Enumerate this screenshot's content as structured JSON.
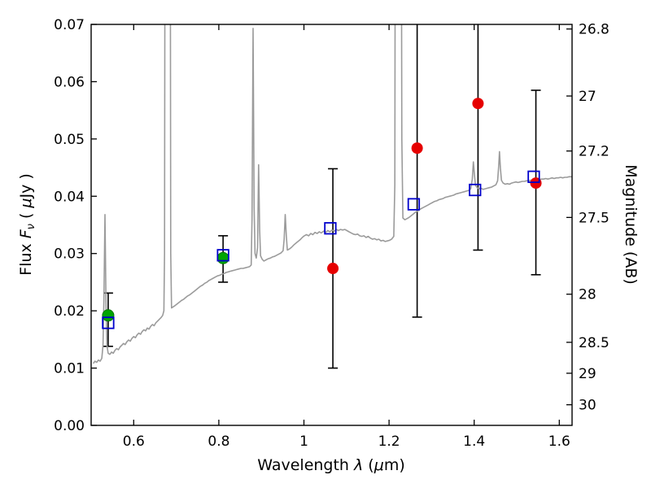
{
  "chart_data": {
    "type": "line",
    "title": "",
    "grid": false,
    "legend": null,
    "xlabel": "Wavelength λ (μm)",
    "xlabel_parts": {
      "pre": "Wavelength ",
      "lambda": "λ",
      "mid": " (",
      "mu": "μ",
      "post": "m)"
    },
    "ylabel_left": "Flux Fν ( μJy )",
    "ylabel_parts": {
      "p1": "Flux ",
      "F": "F",
      "nu": "ν",
      "p2": " ( ",
      "mu": "μ",
      "p3": "Jy )"
    },
    "ylabel_right": "Magnitude (AB)",
    "x_axis": {
      "min": 0.5,
      "max": 1.63,
      "ticks": [
        {
          "v": 0.6,
          "t": "0.6"
        },
        {
          "v": 0.8,
          "t": "0.8"
        },
        {
          "v": 1.0,
          "t": "1"
        },
        {
          "v": 1.2,
          "t": "1.2"
        },
        {
          "v": 1.4,
          "t": "1.4"
        },
        {
          "v": 1.6,
          "t": "1.6"
        }
      ]
    },
    "y_axis_left": {
      "min": 0.0,
      "max": 0.07,
      "ticks": [
        {
          "v": 0.0,
          "t": "0.00"
        },
        {
          "v": 0.01,
          "t": "0.01"
        },
        {
          "v": 0.02,
          "t": "0.02"
        },
        {
          "v": 0.03,
          "t": "0.03"
        },
        {
          "v": 0.04,
          "t": "0.04"
        },
        {
          "v": 0.05,
          "t": "0.05"
        },
        {
          "v": 0.06,
          "t": "0.06"
        },
        {
          "v": 0.07,
          "t": "0.07"
        }
      ]
    },
    "y_axis_right": {
      "ticks": [
        {
          "f": 0.0692,
          "t": "26.8"
        },
        {
          "f": 0.0575,
          "t": "27"
        },
        {
          "f": 0.0479,
          "t": "27.2"
        },
        {
          "f": 0.0363,
          "t": "27.5"
        },
        {
          "f": 0.0229,
          "t": "28"
        },
        {
          "f": 0.0145,
          "t": "28.5"
        },
        {
          "f": 0.0091,
          "t": "29"
        },
        {
          "f": 0.0036,
          "t": "30"
        }
      ]
    },
    "colors": {
      "spectrum": "#9b9b9b",
      "green": "#00a500",
      "green_edge": "#007700",
      "red": "#e60000",
      "blue": "#0000cc",
      "errorbar": "#000000",
      "frame": "#000000"
    },
    "series": {
      "green_circles": [
        [
          0.54,
          0.0192
        ],
        [
          0.81,
          0.0292
        ]
      ],
      "blue_squares": [
        [
          0.54,
          0.0179
        ],
        [
          0.81,
          0.0297
        ],
        [
          1.062,
          0.0344
        ],
        [
          1.258,
          0.0386
        ],
        [
          1.402,
          0.0411
        ],
        [
          1.54,
          0.0434
        ]
      ],
      "red_circles": [
        [
          1.068,
          0.0274
        ],
        [
          1.266,
          0.0484
        ],
        [
          1.409,
          0.0562
        ],
        [
          1.545,
          0.0423
        ]
      ],
      "error_bars": [
        {
          "x": 0.54,
          "lo": 0.0138,
          "hi": 0.0231
        },
        {
          "x": 0.81,
          "lo": 0.025,
          "hi": 0.0331
        },
        {
          "x": 1.068,
          "lo": 0.01,
          "hi": 0.0448
        },
        {
          "x": 1.266,
          "lo": 0.0189,
          "hi": 0.078
        },
        {
          "x": 1.409,
          "lo": 0.0306,
          "hi": 0.078
        },
        {
          "x": 1.545,
          "lo": 0.0263,
          "hi": 0.0585
        }
      ],
      "spectrum": [
        [
          0.505,
          0.0108
        ],
        [
          0.509,
          0.0112
        ],
        [
          0.513,
          0.011
        ],
        [
          0.517,
          0.0114
        ],
        [
          0.521,
          0.0112
        ],
        [
          0.525,
          0.0117
        ],
        [
          0.528,
          0.014
        ],
        [
          0.53,
          0.022
        ],
        [
          0.5325,
          0.0368
        ],
        [
          0.535,
          0.021
        ],
        [
          0.537,
          0.014
        ],
        [
          0.54,
          0.0126
        ],
        [
          0.544,
          0.0124
        ],
        [
          0.548,
          0.0128
        ],
        [
          0.552,
          0.0126
        ],
        [
          0.556,
          0.0131
        ],
        [
          0.56,
          0.0134
        ],
        [
          0.564,
          0.0132
        ],
        [
          0.568,
          0.0137
        ],
        [
          0.572,
          0.014
        ],
        [
          0.576,
          0.0143
        ],
        [
          0.58,
          0.0141
        ],
        [
          0.584,
          0.0146
        ],
        [
          0.588,
          0.0149
        ],
        [
          0.592,
          0.0147
        ],
        [
          0.596,
          0.0152
        ],
        [
          0.6,
          0.0155
        ],
        [
          0.604,
          0.0153
        ],
        [
          0.608,
          0.0158
        ],
        [
          0.612,
          0.0161
        ],
        [
          0.616,
          0.0159
        ],
        [
          0.62,
          0.0164
        ],
        [
          0.624,
          0.0167
        ],
        [
          0.628,
          0.0165
        ],
        [
          0.632,
          0.017
        ],
        [
          0.636,
          0.0168
        ],
        [
          0.64,
          0.0173
        ],
        [
          0.644,
          0.0176
        ],
        [
          0.648,
          0.0174
        ],
        [
          0.652,
          0.0179
        ],
        [
          0.656,
          0.0182
        ],
        [
          0.66,
          0.0185
        ],
        [
          0.664,
          0.0188
        ],
        [
          0.668,
          0.0192
        ],
        [
          0.671,
          0.02
        ],
        [
          0.6725,
          0.03
        ],
        [
          0.674,
          0.12
        ],
        [
          0.6855,
          0.12
        ],
        [
          0.687,
          0.03
        ],
        [
          0.689,
          0.0205
        ],
        [
          0.693,
          0.0207
        ],
        [
          0.697,
          0.0209
        ],
        [
          0.702,
          0.0212
        ],
        [
          0.707,
          0.0215
        ],
        [
          0.712,
          0.0218
        ],
        [
          0.717,
          0.022
        ],
        [
          0.722,
          0.0223
        ],
        [
          0.727,
          0.0226
        ],
        [
          0.732,
          0.0228
        ],
        [
          0.737,
          0.0231
        ],
        [
          0.742,
          0.0234
        ],
        [
          0.747,
          0.0237
        ],
        [
          0.752,
          0.024
        ],
        [
          0.757,
          0.0243
        ],
        [
          0.762,
          0.0245
        ],
        [
          0.767,
          0.0248
        ],
        [
          0.772,
          0.025
        ],
        [
          0.777,
          0.0253
        ],
        [
          0.782,
          0.0255
        ],
        [
          0.787,
          0.0257
        ],
        [
          0.792,
          0.0259
        ],
        [
          0.797,
          0.0261
        ],
        [
          0.802,
          0.0262
        ],
        [
          0.807,
          0.0264
        ],
        [
          0.812,
          0.0265
        ],
        [
          0.817,
          0.0267
        ],
        [
          0.822,
          0.0268
        ],
        [
          0.827,
          0.0269
        ],
        [
          0.832,
          0.027
        ],
        [
          0.837,
          0.0271
        ],
        [
          0.842,
          0.0272
        ],
        [
          0.847,
          0.0273
        ],
        [
          0.852,
          0.0274
        ],
        [
          0.857,
          0.0274
        ],
        [
          0.862,
          0.0275
        ],
        [
          0.867,
          0.0276
        ],
        [
          0.872,
          0.0277
        ],
        [
          0.876,
          0.028
        ],
        [
          0.878,
          0.036
        ],
        [
          0.8805,
          0.0693
        ],
        [
          0.883,
          0.038
        ],
        [
          0.885,
          0.03
        ],
        [
          0.888,
          0.0292
        ],
        [
          0.891,
          0.031
        ],
        [
          0.8935,
          0.0455
        ],
        [
          0.896,
          0.034
        ],
        [
          0.898,
          0.0296
        ],
        [
          0.902,
          0.029
        ],
        [
          0.906,
          0.0287
        ],
        [
          0.911,
          0.0289
        ],
        [
          0.916,
          0.0291
        ],
        [
          0.921,
          0.0292
        ],
        [
          0.926,
          0.0294
        ],
        [
          0.931,
          0.0295
        ],
        [
          0.936,
          0.0297
        ],
        [
          0.941,
          0.0299
        ],
        [
          0.946,
          0.0301
        ],
        [
          0.951,
          0.0305
        ],
        [
          0.9535,
          0.0325
        ],
        [
          0.956,
          0.0368
        ],
        [
          0.9585,
          0.0332
        ],
        [
          0.961,
          0.0306
        ],
        [
          0.966,
          0.0308
        ],
        [
          0.971,
          0.0311
        ],
        [
          0.976,
          0.0315
        ],
        [
          0.981,
          0.0318
        ],
        [
          0.986,
          0.0321
        ],
        [
          0.991,
          0.0324
        ],
        [
          0.996,
          0.0328
        ],
        [
          1.001,
          0.0331
        ],
        [
          1.006,
          0.0333
        ],
        [
          1.011,
          0.0331
        ],
        [
          1.016,
          0.0335
        ],
        [
          1.021,
          0.0333
        ],
        [
          1.026,
          0.0337
        ],
        [
          1.031,
          0.0335
        ],
        [
          1.036,
          0.0338
        ],
        [
          1.041,
          0.0336
        ],
        [
          1.046,
          0.0339
        ],
        [
          1.051,
          0.0337
        ],
        [
          1.056,
          0.034
        ],
        [
          1.061,
          0.0338
        ],
        [
          1.066,
          0.0341
        ],
        [
          1.071,
          0.0339
        ],
        [
          1.076,
          0.0342
        ],
        [
          1.081,
          0.034
        ],
        [
          1.086,
          0.0342
        ],
        [
          1.091,
          0.0341
        ],
        [
          1.096,
          0.0342
        ],
        [
          1.101,
          0.034
        ],
        [
          1.106,
          0.0338
        ],
        [
          1.111,
          0.0336
        ],
        [
          1.116,
          0.0334
        ],
        [
          1.121,
          0.0333
        ],
        [
          1.126,
          0.0334
        ],
        [
          1.131,
          0.0331
        ],
        [
          1.136,
          0.033
        ],
        [
          1.141,
          0.0331
        ],
        [
          1.146,
          0.0328
        ],
        [
          1.151,
          0.033
        ],
        [
          1.156,
          0.0327
        ],
        [
          1.161,
          0.0325
        ],
        [
          1.166,
          0.0326
        ],
        [
          1.171,
          0.0324
        ],
        [
          1.176,
          0.0325
        ],
        [
          1.181,
          0.0322
        ],
        [
          1.186,
          0.0323
        ],
        [
          1.191,
          0.0321
        ],
        [
          1.196,
          0.0322
        ],
        [
          1.201,
          0.0323
        ],
        [
          1.206,
          0.0325
        ],
        [
          1.211,
          0.033
        ],
        [
          1.2135,
          0.042
        ],
        [
          1.215,
          0.12
        ],
        [
          1.228,
          0.12
        ],
        [
          1.23,
          0.05
        ],
        [
          1.2325,
          0.0362
        ],
        [
          1.237,
          0.0359
        ],
        [
          1.242,
          0.0361
        ],
        [
          1.247,
          0.0363
        ],
        [
          1.252,
          0.0366
        ],
        [
          1.257,
          0.0369
        ],
        [
          1.262,
          0.0372
        ],
        [
          1.267,
          0.0374
        ],
        [
          1.272,
          0.0377
        ],
        [
          1.277,
          0.0379
        ],
        [
          1.282,
          0.0381
        ],
        [
          1.287,
          0.0383
        ],
        [
          1.292,
          0.0385
        ],
        [
          1.297,
          0.0387
        ],
        [
          1.302,
          0.0389
        ],
        [
          1.307,
          0.0391
        ],
        [
          1.312,
          0.0392
        ],
        [
          1.317,
          0.0394
        ],
        [
          1.322,
          0.0395
        ],
        [
          1.327,
          0.0396
        ],
        [
          1.332,
          0.0398
        ],
        [
          1.337,
          0.0399
        ],
        [
          1.342,
          0.04
        ],
        [
          1.347,
          0.0401
        ],
        [
          1.352,
          0.0402
        ],
        [
          1.357,
          0.0404
        ],
        [
          1.362,
          0.0405
        ],
        [
          1.367,
          0.0406
        ],
        [
          1.372,
          0.0407
        ],
        [
          1.377,
          0.0408
        ],
        [
          1.382,
          0.0409
        ],
        [
          1.387,
          0.041
        ],
        [
          1.392,
          0.0413
        ],
        [
          1.3955,
          0.043
        ],
        [
          1.398,
          0.046
        ],
        [
          1.4005,
          0.0438
        ],
        [
          1.403,
          0.0419
        ],
        [
          1.407,
          0.0415
        ],
        [
          1.411,
          0.0413
        ],
        [
          1.416,
          0.0414
        ],
        [
          1.421,
          0.0412
        ],
        [
          1.426,
          0.0413
        ],
        [
          1.431,
          0.0414
        ],
        [
          1.436,
          0.0415
        ],
        [
          1.441,
          0.0416
        ],
        [
          1.446,
          0.0418
        ],
        [
          1.451,
          0.042
        ],
        [
          1.455,
          0.0427
        ],
        [
          1.4575,
          0.0452
        ],
        [
          1.4595,
          0.0478
        ],
        [
          1.4615,
          0.045
        ],
        [
          1.464,
          0.0428
        ],
        [
          1.468,
          0.0423
        ],
        [
          1.473,
          0.0421
        ],
        [
          1.478,
          0.0422
        ],
        [
          1.483,
          0.0421
        ],
        [
          1.488,
          0.0423
        ],
        [
          1.493,
          0.0424
        ],
        [
          1.498,
          0.0425
        ],
        [
          1.503,
          0.0424
        ],
        [
          1.508,
          0.0425
        ],
        [
          1.513,
          0.0426
        ],
        [
          1.518,
          0.0426
        ],
        [
          1.523,
          0.0427
        ],
        [
          1.528,
          0.0427
        ],
        [
          1.533,
          0.0428
        ],
        [
          1.538,
          0.0428
        ],
        [
          1.543,
          0.0429
        ],
        [
          1.548,
          0.0428
        ],
        [
          1.553,
          0.0429
        ],
        [
          1.558,
          0.043
        ],
        [
          1.563,
          0.043
        ],
        [
          1.568,
          0.0431
        ],
        [
          1.573,
          0.043
        ],
        [
          1.578,
          0.0431
        ],
        [
          1.583,
          0.0432
        ],
        [
          1.588,
          0.0431
        ],
        [
          1.593,
          0.0432
        ],
        [
          1.598,
          0.0432
        ],
        [
          1.603,
          0.0433
        ],
        [
          1.608,
          0.0432
        ],
        [
          1.613,
          0.0433
        ],
        [
          1.618,
          0.0433
        ],
        [
          1.623,
          0.0434
        ],
        [
          1.628,
          0.0434
        ],
        [
          1.632,
          0.0434
        ]
      ]
    }
  }
}
